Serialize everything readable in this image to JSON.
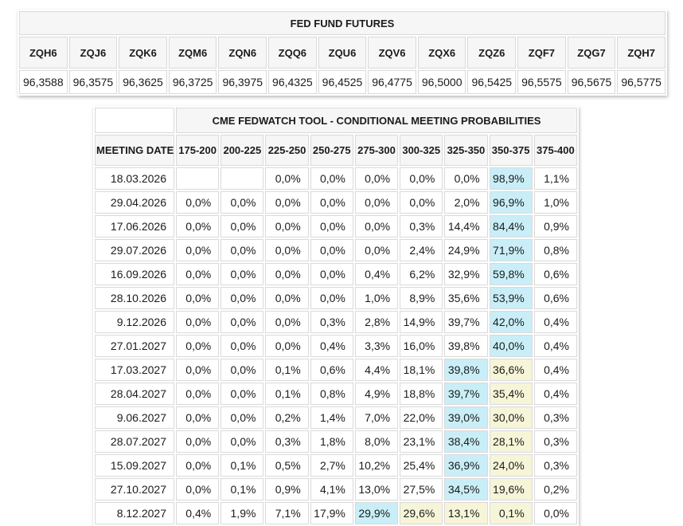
{
  "colors": {
    "highlight_cyan": "#c9eef7",
    "highlight_yellow": "#f7f5d8",
    "header_bg": "#f6f6f6",
    "border": "#d9d9d9"
  },
  "chart_data": [
    {
      "type": "table",
      "title": "FED FUND FUTURES",
      "columns": [
        "ZQH6",
        "ZQJ6",
        "ZQK6",
        "ZQM6",
        "ZQN6",
        "ZQQ6",
        "ZQU6",
        "ZQV6",
        "ZQX6",
        "ZQZ6",
        "ZQF7",
        "ZQG7",
        "ZQH7"
      ],
      "rows": [
        [
          "96,3588",
          "96,3575",
          "96,3625",
          "96,3725",
          "96,3975",
          "96,4325",
          "96,4525",
          "96,4775",
          "96,5000",
          "96,5425",
          "96,5575",
          "96,5675",
          "96,5775"
        ]
      ]
    },
    {
      "type": "table",
      "title": "CME FEDWATCH TOOL - CONDITIONAL MEETING PROBABILITIES",
      "columns": [
        "MEETING DATE",
        "175-200",
        "200-225",
        "225-250",
        "250-275",
        "275-300",
        "300-325",
        "325-350",
        "350-375",
        "375-400"
      ],
      "rows": [
        {
          "date": "18.03.2026",
          "values": [
            "",
            "",
            "0,0%",
            "0,0%",
            "0,0%",
            "0,0%",
            "0,0%",
            "98,9%",
            "1,1%"
          ],
          "highlights": [
            "",
            "",
            "",
            "",
            "",
            "",
            "",
            "cyan",
            ""
          ]
        },
        {
          "date": "29.04.2026",
          "values": [
            "0,0%",
            "0,0%",
            "0,0%",
            "0,0%",
            "0,0%",
            "0,0%",
            "2,0%",
            "96,9%",
            "1,0%"
          ],
          "highlights": [
            "",
            "",
            "",
            "",
            "",
            "",
            "",
            "cyan",
            ""
          ]
        },
        {
          "date": "17.06.2026",
          "values": [
            "0,0%",
            "0,0%",
            "0,0%",
            "0,0%",
            "0,0%",
            "0,3%",
            "14,4%",
            "84,4%",
            "0,9%"
          ],
          "highlights": [
            "",
            "",
            "",
            "",
            "",
            "",
            "",
            "cyan",
            ""
          ]
        },
        {
          "date": "29.07.2026",
          "values": [
            "0,0%",
            "0,0%",
            "0,0%",
            "0,0%",
            "0,0%",
            "2,4%",
            "24,9%",
            "71,9%",
            "0,8%"
          ],
          "highlights": [
            "",
            "",
            "",
            "",
            "",
            "",
            "",
            "cyan",
            ""
          ]
        },
        {
          "date": "16.09.2026",
          "values": [
            "0,0%",
            "0,0%",
            "0,0%",
            "0,0%",
            "0,4%",
            "6,2%",
            "32,9%",
            "59,8%",
            "0,6%"
          ],
          "highlights": [
            "",
            "",
            "",
            "",
            "",
            "",
            "",
            "cyan",
            ""
          ]
        },
        {
          "date": "28.10.2026",
          "values": [
            "0,0%",
            "0,0%",
            "0,0%",
            "0,0%",
            "1,0%",
            "8,9%",
            "35,6%",
            "53,9%",
            "0,6%"
          ],
          "highlights": [
            "",
            "",
            "",
            "",
            "",
            "",
            "",
            "cyan",
            ""
          ]
        },
        {
          "date": "9.12.2026",
          "values": [
            "0,0%",
            "0,0%",
            "0,0%",
            "0,3%",
            "2,8%",
            "14,9%",
            "39,7%",
            "42,0%",
            "0,4%"
          ],
          "highlights": [
            "",
            "",
            "",
            "",
            "",
            "",
            "",
            "cyan",
            ""
          ]
        },
        {
          "date": "27.01.2027",
          "values": [
            "0,0%",
            "0,0%",
            "0,0%",
            "0,4%",
            "3,3%",
            "16,0%",
            "39,8%",
            "40,0%",
            "0,4%"
          ],
          "highlights": [
            "",
            "",
            "",
            "",
            "",
            "",
            "",
            "cyan",
            ""
          ]
        },
        {
          "date": "17.03.2027",
          "values": [
            "0,0%",
            "0,0%",
            "0,1%",
            "0,6%",
            "4,4%",
            "18,1%",
            "39,8%",
            "36,6%",
            "0,4%"
          ],
          "highlights": [
            "",
            "",
            "",
            "",
            "",
            "",
            "cyan",
            "yellow",
            ""
          ]
        },
        {
          "date": "28.04.2027",
          "values": [
            "0,0%",
            "0,0%",
            "0,1%",
            "0,8%",
            "4,9%",
            "18,8%",
            "39,7%",
            "35,4%",
            "0,4%"
          ],
          "highlights": [
            "",
            "",
            "",
            "",
            "",
            "",
            "cyan",
            "yellow",
            ""
          ]
        },
        {
          "date": "9.06.2027",
          "values": [
            "0,0%",
            "0,0%",
            "0,2%",
            "1,4%",
            "7,0%",
            "22,0%",
            "39,0%",
            "30,0%",
            "0,3%"
          ],
          "highlights": [
            "",
            "",
            "",
            "",
            "",
            "",
            "cyan",
            "yellow",
            ""
          ]
        },
        {
          "date": "28.07.2027",
          "values": [
            "0,0%",
            "0,0%",
            "0,3%",
            "1,8%",
            "8,0%",
            "23,1%",
            "38,4%",
            "28,1%",
            "0,3%"
          ],
          "highlights": [
            "",
            "",
            "",
            "",
            "",
            "",
            "cyan",
            "yellow",
            ""
          ]
        },
        {
          "date": "15.09.2027",
          "values": [
            "0,0%",
            "0,1%",
            "0,5%",
            "2,7%",
            "10,2%",
            "25,4%",
            "36,9%",
            "24,0%",
            "0,3%"
          ],
          "highlights": [
            "",
            "",
            "",
            "",
            "",
            "",
            "cyan",
            "yellow",
            ""
          ]
        },
        {
          "date": "27.10.2027",
          "values": [
            "0,0%",
            "0,1%",
            "0,9%",
            "4,1%",
            "13,0%",
            "27,5%",
            "34,5%",
            "19,6%",
            "0,2%"
          ],
          "highlights": [
            "",
            "",
            "",
            "",
            "",
            "",
            "cyan",
            "yellow",
            ""
          ]
        },
        {
          "date": "8.12.2027",
          "values": [
            "0,4%",
            "1,9%",
            "7,1%",
            "17,9%",
            "29,9%",
            "29,6%",
            "13,1%",
            "0,1%",
            "0,0%"
          ],
          "highlights": [
            "",
            "",
            "",
            "",
            "cyan",
            "yellow",
            "yellow",
            "yellow",
            ""
          ]
        }
      ]
    }
  ]
}
